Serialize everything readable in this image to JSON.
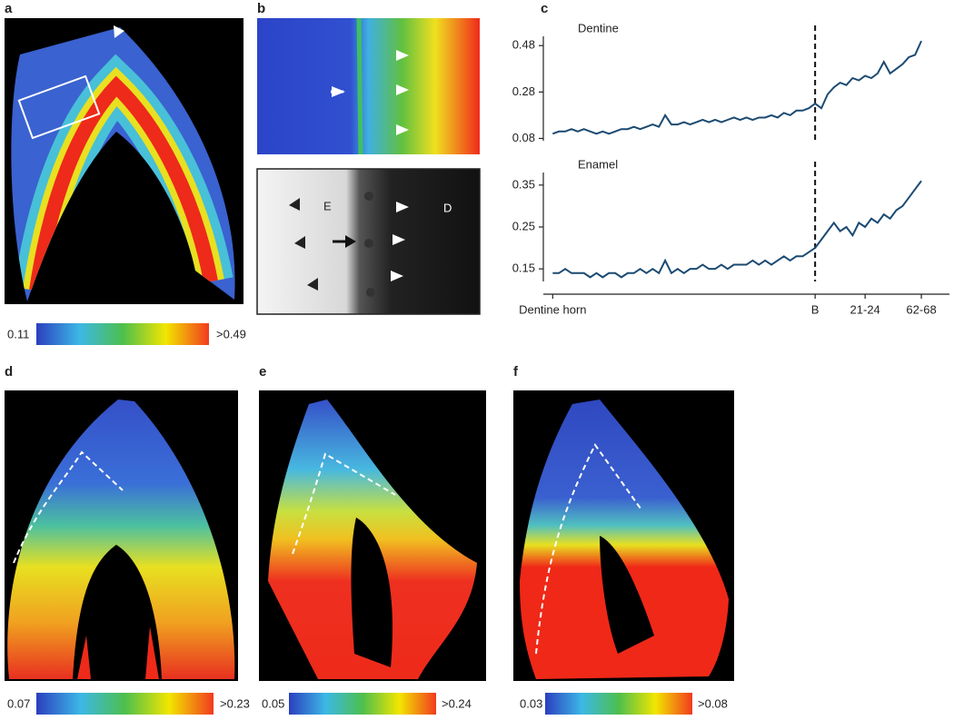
{
  "panel_labels": [
    "a",
    "b",
    "c",
    "d",
    "e",
    "f"
  ],
  "colorbars": [
    {
      "min": "0.11",
      "max": ">0.49"
    },
    {
      "min": "0.07",
      "max": ">0.23"
    },
    {
      "min": "0.05",
      "max": ">0.24"
    },
    {
      "min": "0.03",
      "max": ">0.08"
    }
  ],
  "panel_b": {
    "enamel_label": "E",
    "dentine_label": "D"
  },
  "chart_data": [
    {
      "type": "line",
      "title": "Dentine",
      "color": "#1b4a72",
      "x": [
        0,
        1,
        2,
        3,
        4,
        5,
        6,
        7,
        8,
        9,
        10,
        11,
        12,
        13,
        14,
        15,
        16,
        17,
        18,
        19,
        20,
        21,
        22,
        23,
        24,
        25,
        26,
        27,
        28,
        29,
        30,
        31,
        32,
        33,
        34,
        35,
        36,
        37,
        38,
        39,
        40,
        41,
        42,
        43,
        44,
        45,
        46,
        47,
        48,
        49,
        50,
        51,
        52,
        53,
        54,
        55,
        56,
        57,
        58,
        59
      ],
      "values": [
        0.1,
        0.11,
        0.11,
        0.12,
        0.11,
        0.12,
        0.11,
        0.1,
        0.11,
        0.1,
        0.11,
        0.12,
        0.12,
        0.13,
        0.12,
        0.13,
        0.14,
        0.13,
        0.18,
        0.14,
        0.14,
        0.15,
        0.14,
        0.15,
        0.16,
        0.15,
        0.16,
        0.15,
        0.16,
        0.17,
        0.16,
        0.17,
        0.16,
        0.17,
        0.17,
        0.18,
        0.17,
        0.19,
        0.18,
        0.2,
        0.2,
        0.21,
        0.23,
        0.21,
        0.27,
        0.3,
        0.32,
        0.31,
        0.34,
        0.33,
        0.35,
        0.34,
        0.36,
        0.41,
        0.36,
        0.38,
        0.4,
        0.43,
        0.44,
        0.5
      ],
      "xlim": [
        -1.5,
        63.5
      ],
      "ylim": [
        0.07,
        0.52
      ],
      "yticks": [
        0.08,
        0.28,
        0.48
      ],
      "vline": 42
    },
    {
      "type": "line",
      "title": "Enamel",
      "color": "#1b4a72",
      "x": [
        0,
        1,
        2,
        3,
        4,
        5,
        6,
        7,
        8,
        9,
        10,
        11,
        12,
        13,
        14,
        15,
        16,
        17,
        18,
        19,
        20,
        21,
        22,
        23,
        24,
        25,
        26,
        27,
        28,
        29,
        30,
        31,
        32,
        33,
        34,
        35,
        36,
        37,
        38,
        39,
        40,
        41,
        42,
        43,
        44,
        45,
        46,
        47,
        48,
        49,
        50,
        51,
        52,
        53,
        54,
        55,
        56,
        57,
        58,
        59
      ],
      "values": [
        0.14,
        0.14,
        0.15,
        0.14,
        0.14,
        0.14,
        0.13,
        0.14,
        0.13,
        0.14,
        0.14,
        0.13,
        0.14,
        0.14,
        0.15,
        0.14,
        0.15,
        0.14,
        0.17,
        0.14,
        0.15,
        0.14,
        0.15,
        0.15,
        0.16,
        0.15,
        0.15,
        0.16,
        0.15,
        0.16,
        0.16,
        0.16,
        0.17,
        0.16,
        0.17,
        0.16,
        0.17,
        0.18,
        0.17,
        0.18,
        0.18,
        0.19,
        0.2,
        0.22,
        0.24,
        0.26,
        0.24,
        0.25,
        0.23,
        0.26,
        0.25,
        0.27,
        0.26,
        0.28,
        0.27,
        0.29,
        0.3,
        0.32,
        0.34,
        0.36
      ],
      "xlim": [
        -1.5,
        63.5
      ],
      "ylim": [
        0.12,
        0.38
      ],
      "yticks": [
        0.15,
        0.25,
        0.35
      ],
      "vline": 42,
      "xticks": [
        {
          "value": 0,
          "label": "Dentine horn"
        },
        {
          "value": 42,
          "label": "B"
        },
        {
          "value": 50,
          "label": "21-24"
        },
        {
          "value": 59,
          "label": "62-68"
        }
      ]
    }
  ]
}
